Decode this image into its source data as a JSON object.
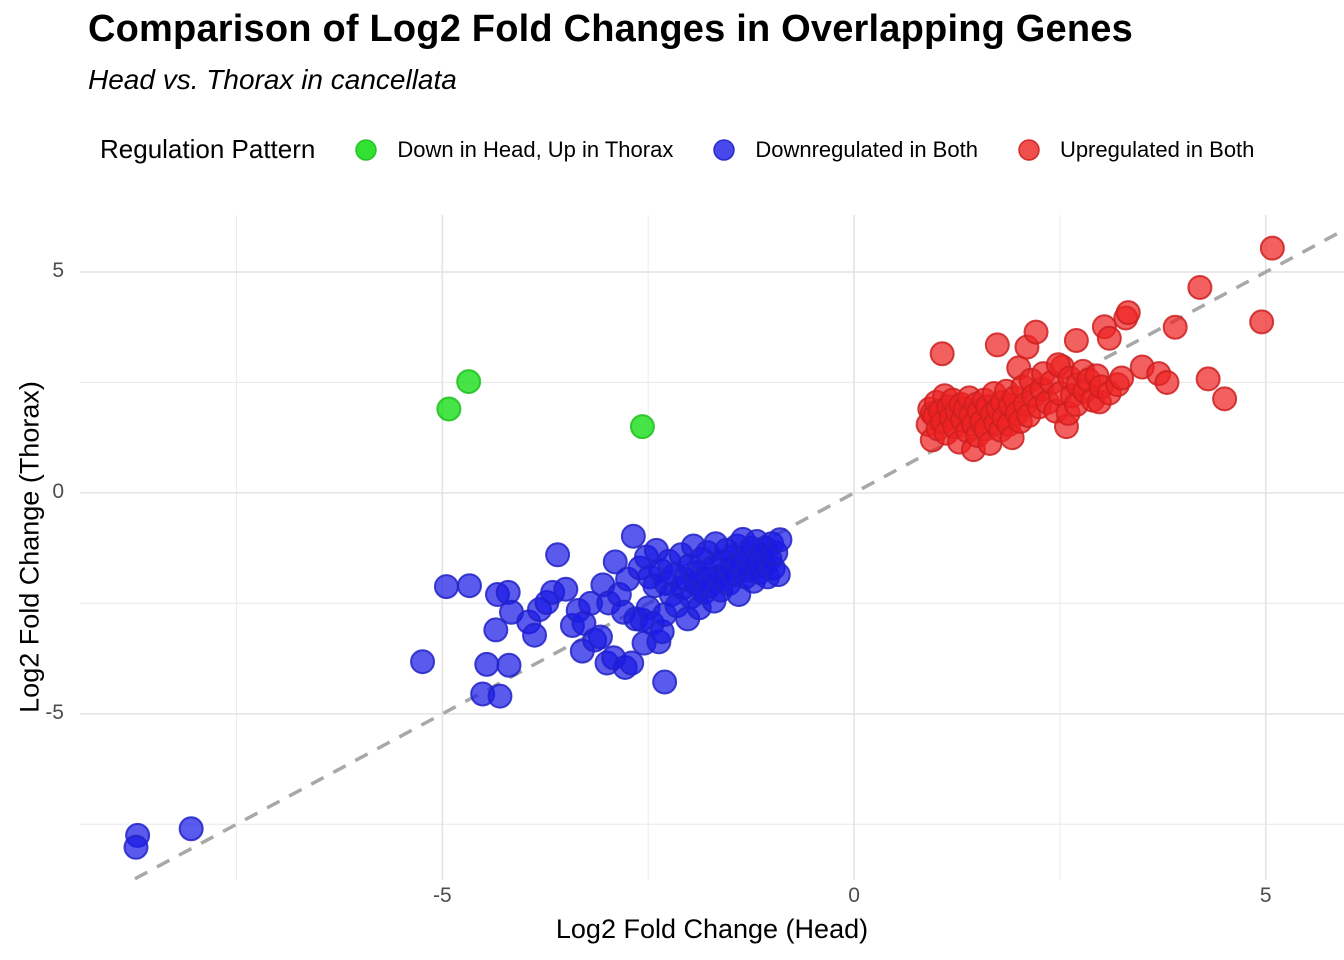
{
  "header": {
    "title": "Comparison of Log2 Fold Changes in Overlapping Genes",
    "subtitle": "Head vs. Thorax in cancellata"
  },
  "legend": {
    "title": "Regulation Pattern",
    "position": "top"
  },
  "chart_data": {
    "type": "scatter",
    "title": "Comparison of Log2 Fold Changes in Overlapping Genes",
    "subtitle": "Head vs. Thorax in cancellata",
    "xlabel": "Log2 Fold Change (Head)",
    "ylabel": "Log2 Fold Change (Thorax)",
    "xlim": [
      -9.4,
      5.95
    ],
    "ylim": [
      -8.76,
      6.29
    ],
    "x_major_ticks": [
      -5,
      0,
      5
    ],
    "x_minor_gridlines": [
      -7.5,
      -2.5,
      2.5
    ],
    "y_major_ticks": [
      5,
      0,
      -5
    ],
    "y_minor_gridlines": [
      2.5,
      -2.5,
      -7.5
    ],
    "grid": "on",
    "panel_background": "#ffffff",
    "major_grid_color": "#e2e2e2",
    "minor_grid_color": "#ececec",
    "identity_line": {
      "type": "y=x",
      "style": "dashed",
      "color": "#a8a8a8",
      "from": -9.0,
      "to": 6.2
    },
    "point_radius_px": 11.5,
    "series": [
      {
        "name": "Down in Head, Up in Thorax",
        "color": "#00d900",
        "stroke": "#1fbf1f",
        "points": [
          [
            -4.68,
            2.52
          ],
          [
            -4.92,
            1.9
          ],
          [
            -2.57,
            1.5
          ]
        ]
      },
      {
        "name": "Downregulated in Both",
        "color": "#1a1ae6",
        "stroke": "#2222c8",
        "points": [
          [
            -8.7,
            -7.75
          ],
          [
            -8.72,
            -8.02
          ],
          [
            -8.05,
            -7.6
          ],
          [
            -5.24,
            -3.82
          ],
          [
            -4.95,
            -2.12
          ],
          [
            -4.67,
            -2.1
          ],
          [
            -4.51,
            -4.55
          ],
          [
            -4.46,
            -3.88
          ],
          [
            -4.35,
            -3.1
          ],
          [
            -4.3,
            -4.6
          ],
          [
            -4.33,
            -2.3
          ],
          [
            -4.2,
            -2.25
          ],
          [
            -4.19,
            -3.9
          ],
          [
            -4.16,
            -2.7
          ],
          [
            -3.95,
            -2.92
          ],
          [
            -3.88,
            -3.22
          ],
          [
            -3.82,
            -2.64
          ],
          [
            -3.73,
            -2.48
          ],
          [
            -3.66,
            -2.25
          ],
          [
            -3.6,
            -1.4
          ],
          [
            -3.5,
            -2.18
          ],
          [
            -3.42,
            -3.0
          ],
          [
            -3.35,
            -2.66
          ],
          [
            -3.3,
            -3.58
          ],
          [
            -3.28,
            -2.95
          ],
          [
            -3.2,
            -2.5
          ],
          [
            -3.15,
            -3.33
          ],
          [
            -3.08,
            -3.26
          ],
          [
            -3.05,
            -2.08
          ],
          [
            -3.0,
            -3.85
          ],
          [
            -2.98,
            -2.49
          ],
          [
            -2.92,
            -3.73
          ],
          [
            -2.9,
            -1.56
          ],
          [
            -2.85,
            -2.3
          ],
          [
            -2.8,
            -2.7
          ],
          [
            -2.78,
            -3.95
          ],
          [
            -2.75,
            -1.95
          ],
          [
            -2.7,
            -3.85
          ],
          [
            -2.68,
            -0.98
          ],
          [
            -2.65,
            -2.85
          ],
          [
            -2.6,
            -1.7
          ],
          [
            -2.58,
            -2.87
          ],
          [
            -2.55,
            -3.4
          ],
          [
            -2.52,
            -1.45
          ],
          [
            -2.5,
            -2.6
          ],
          [
            -2.48,
            -1.9
          ],
          [
            -2.45,
            -2.95
          ],
          [
            -2.42,
            -2.1
          ],
          [
            -2.4,
            -1.3
          ],
          [
            -2.37,
            -3.37
          ],
          [
            -2.35,
            -1.75
          ],
          [
            -2.33,
            -3.14
          ],
          [
            -2.3,
            -2.75
          ],
          [
            -2.3,
            -4.28
          ],
          [
            -2.28,
            -2.05
          ],
          [
            -2.25,
            -1.55
          ],
          [
            -2.22,
            -2.3
          ],
          [
            -2.18,
            -1.85
          ],
          [
            -2.15,
            -2.55
          ],
          [
            -2.1,
            -1.4
          ],
          [
            -2.08,
            -2.15
          ],
          [
            -2.05,
            -1.95
          ],
          [
            -2.02,
            -2.85
          ],
          [
            -2.0,
            -1.65
          ],
          [
            -1.98,
            -2.35
          ],
          [
            -1.95,
            -1.2
          ],
          [
            -1.92,
            -2.05
          ],
          [
            -1.9,
            -1.8
          ],
          [
            -1.88,
            -2.6
          ],
          [
            -1.85,
            -1.5
          ],
          [
            -1.82,
            -2.25
          ],
          [
            -1.8,
            -1.95
          ],
          [
            -1.78,
            -1.35
          ],
          [
            -1.75,
            -2.1
          ],
          [
            -1.72,
            -1.7
          ],
          [
            -1.7,
            -2.45
          ],
          [
            -1.68,
            -1.15
          ],
          [
            -1.65,
            -1.9
          ],
          [
            -1.62,
            -2.2
          ],
          [
            -1.6,
            -1.55
          ],
          [
            -1.58,
            -1.95
          ],
          [
            -1.55,
            -1.3
          ],
          [
            -1.52,
            -2.05
          ],
          [
            -1.5,
            -1.7
          ],
          [
            -1.48,
            -1.45
          ],
          [
            -1.45,
            -1.85
          ],
          [
            -1.42,
            -1.2
          ],
          [
            -1.4,
            -2.3
          ],
          [
            -1.38,
            -1.6
          ],
          [
            -1.35,
            -1.05
          ],
          [
            -1.32,
            -1.9
          ],
          [
            -1.3,
            -1.45
          ],
          [
            -1.28,
            -1.75
          ],
          [
            -1.25,
            -1.25
          ],
          [
            -1.22,
            -2.0
          ],
          [
            -1.2,
            -1.55
          ],
          [
            -1.18,
            -1.1
          ],
          [
            -1.15,
            -1.8
          ],
          [
            -1.12,
            -1.4
          ],
          [
            -1.1,
            -1.65
          ],
          [
            -1.08,
            -1.25
          ],
          [
            -1.05,
            -1.9
          ],
          [
            -1.02,
            -1.5
          ],
          [
            -1.0,
            -1.15
          ],
          [
            -0.98,
            -1.7
          ],
          [
            -0.95,
            -1.35
          ],
          [
            -0.92,
            -1.85
          ],
          [
            -0.9,
            -1.06
          ]
        ]
      },
      {
        "name": "Upregulated in Both",
        "color": "#ee2222",
        "stroke": "#cc2020",
        "points": [
          [
            1.07,
            3.15
          ],
          [
            1.74,
            3.35
          ],
          [
            2.0,
            2.83
          ],
          [
            2.1,
            3.3
          ],
          [
            2.21,
            3.64
          ],
          [
            2.53,
            2.85
          ],
          [
            2.7,
            3.45
          ],
          [
            3.04,
            3.76
          ],
          [
            3.1,
            3.5
          ],
          [
            3.3,
            3.96
          ],
          [
            3.33,
            4.08
          ],
          [
            0.9,
            1.55
          ],
          [
            0.92,
            1.9
          ],
          [
            0.95,
            1.2
          ],
          [
            0.95,
            1.8
          ],
          [
            0.98,
            1.75
          ],
          [
            1.0,
            2.05
          ],
          [
            1.02,
            1.45
          ],
          [
            1.05,
            1.85
          ],
          [
            1.08,
            1.6
          ],
          [
            1.1,
            2.2
          ],
          [
            1.12,
            1.35
          ],
          [
            1.15,
            1.95
          ],
          [
            1.18,
            1.7
          ],
          [
            1.2,
            2.1
          ],
          [
            1.22,
            1.5
          ],
          [
            1.25,
            1.85
          ],
          [
            1.28,
            1.15
          ],
          [
            1.3,
            2.0
          ],
          [
            1.32,
            1.65
          ],
          [
            1.35,
            1.9
          ],
          [
            1.38,
            1.4
          ],
          [
            1.4,
            2.15
          ],
          [
            1.42,
            1.75
          ],
          [
            1.45,
            0.98
          ],
          [
            1.45,
            1.55
          ],
          [
            1.48,
            2.0
          ],
          [
            1.5,
            1.3
          ],
          [
            1.52,
            1.85
          ],
          [
            1.55,
            1.6
          ],
          [
            1.58,
            2.1
          ],
          [
            1.6,
            1.45
          ],
          [
            1.62,
            1.95
          ],
          [
            1.65,
            1.12
          ],
          [
            1.68,
            1.78
          ],
          [
            1.7,
            2.25
          ],
          [
            1.72,
            1.58
          ],
          [
            1.75,
            1.9
          ],
          [
            1.78,
            1.42
          ],
          [
            1.8,
            2.05
          ],
          [
            1.82,
            1.7
          ],
          [
            1.85,
            2.3
          ],
          [
            1.88,
            1.55
          ],
          [
            1.9,
            1.98
          ],
          [
            1.92,
            1.25
          ],
          [
            1.95,
            2.15
          ],
          [
            1.98,
            1.8
          ],
          [
            2.02,
            1.62
          ],
          [
            2.05,
            2.4
          ],
          [
            2.08,
            2.0
          ],
          [
            2.12,
            1.75
          ],
          [
            2.15,
            2.55
          ],
          [
            2.18,
            2.2
          ],
          [
            2.25,
            1.95
          ],
          [
            2.28,
            2.35
          ],
          [
            2.3,
            2.7
          ],
          [
            2.35,
            2.05
          ],
          [
            2.4,
            2.5
          ],
          [
            2.45,
            1.85
          ],
          [
            2.48,
            2.9
          ],
          [
            2.5,
            2.25
          ],
          [
            2.58,
            1.5
          ],
          [
            2.6,
            1.8
          ],
          [
            2.62,
            2.6
          ],
          [
            2.65,
            2.2
          ],
          [
            2.7,
            2.0
          ],
          [
            2.72,
            2.45
          ],
          [
            2.78,
            2.75
          ],
          [
            2.8,
            2.3
          ],
          [
            2.85,
            2.55
          ],
          [
            2.9,
            2.1
          ],
          [
            2.95,
            2.65
          ],
          [
            2.98,
            2.06
          ],
          [
            3.0,
            2.4
          ],
          [
            3.1,
            2.26
          ],
          [
            3.2,
            2.45
          ],
          [
            3.25,
            2.6
          ],
          [
            3.5,
            2.85
          ],
          [
            3.7,
            2.7
          ],
          [
            3.8,
            2.5
          ],
          [
            3.9,
            3.75
          ],
          [
            4.2,
            4.65
          ],
          [
            4.3,
            2.58
          ],
          [
            4.5,
            2.13
          ],
          [
            4.95,
            3.87
          ],
          [
            5.08,
            5.54
          ]
        ]
      }
    ]
  }
}
